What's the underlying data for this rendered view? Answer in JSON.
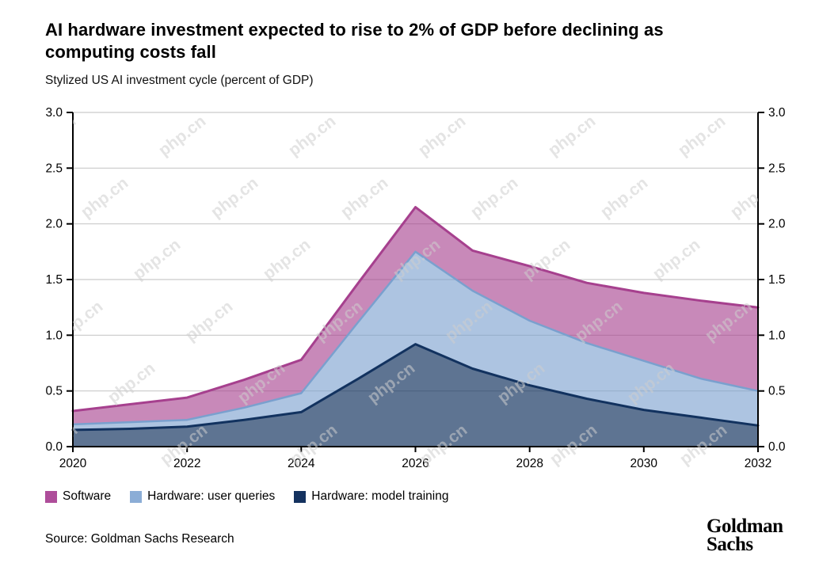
{
  "header": {
    "title": "AI hardware investment expected to rise to 2% of GDP before declining as computing costs fall",
    "subtitle": "Stylized US AI investment cycle (percent of GDP)"
  },
  "chart_data": {
    "type": "area",
    "stacked": true,
    "title": "AI hardware investment expected to rise to 2% of GDP before declining as computing costs fall",
    "subtitle": "Stylized US AI investment cycle (percent of GDP)",
    "xlabel": "",
    "ylabel": "percent of GDP",
    "xlim": [
      2020,
      2032
    ],
    "ylim": [
      0,
      3.0
    ],
    "grid": "horizontal",
    "legend_position": "bottom-left",
    "x": [
      2020,
      2021,
      2022,
      2023,
      2024,
      2025,
      2026,
      2027,
      2028,
      2029,
      2030,
      2031,
      2032
    ],
    "series": [
      {
        "id": "hardware-model-training",
        "name": "Hardware: model training",
        "line": "#12325f",
        "fill": "rgba(18,50,95,0.68)",
        "swatch": "#14325f",
        "line_width": 3,
        "values": [
          0.15,
          0.16,
          0.18,
          0.24,
          0.31,
          0.61,
          0.92,
          0.7,
          0.55,
          0.43,
          0.33,
          0.26,
          0.19
        ]
      },
      {
        "id": "hardware-user-queries",
        "name": "Hardware: user queries",
        "line": "#7aa0ce",
        "fill": "rgba(122,160,206,0.62)",
        "swatch": "#8badd6",
        "line_width": 2.5,
        "values": [
          0.05,
          0.06,
          0.06,
          0.11,
          0.17,
          0.51,
          0.83,
          0.7,
          0.58,
          0.5,
          0.44,
          0.35,
          0.31
        ]
      },
      {
        "id": "software",
        "name": "Software",
        "line": "#a6408e",
        "fill": "rgba(166,64,142,0.62)",
        "swatch": "#ae4d9a",
        "line_width": 3,
        "values": [
          0.12,
          0.16,
          0.2,
          0.25,
          0.3,
          0.35,
          0.4,
          0.36,
          0.49,
          0.54,
          0.61,
          0.7,
          0.75
        ]
      }
    ],
    "stack_totals": [
      0.32,
      0.38,
      0.44,
      0.6,
      0.78,
      1.47,
      2.15,
      1.76,
      1.62,
      1.47,
      1.38,
      1.31,
      1.25
    ],
    "y_tick_labels": [
      "0.0",
      "0.5",
      "1.0",
      "1.5",
      "2.0",
      "2.5",
      "3.0"
    ],
    "x_tick_labels": [
      "2020",
      "2022",
      "2024",
      "2026",
      "2028",
      "2030",
      "2032"
    ],
    "y_axis_sides": [
      "left",
      "right"
    ]
  },
  "legend": {
    "items": [
      {
        "label": "Software",
        "color": "#ae4d9a"
      },
      {
        "label": "Hardware: user queries",
        "color": "#8badd6"
      },
      {
        "label": "Hardware: model training",
        "color": "#14325f"
      }
    ]
  },
  "footer": {
    "source": "Source: Goldman Sachs Research",
    "logo_line1": "Goldman",
    "logo_line2": "Sachs"
  },
  "watermark": {
    "text": "php.cn"
  }
}
